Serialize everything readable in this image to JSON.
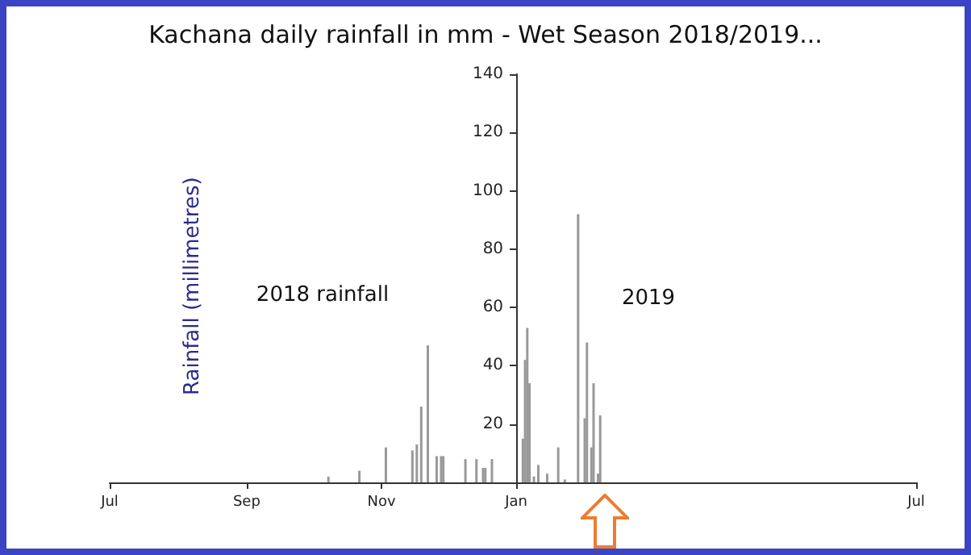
{
  "chart_data": {
    "type": "bar",
    "title": "Kachana daily rainfall in mm - Wet Season 2018/2019...",
    "ylabel": "Rainfall (millimetres)",
    "annotations": [
      "2018 rainfall",
      "2019"
    ],
    "x": [
      "2018-10-08",
      "2018-10-22",
      "2018-11-03",
      "2018-11-15",
      "2018-11-17",
      "2018-11-19",
      "2018-11-22",
      "2018-11-26",
      "2018-11-28",
      "2018-11-29",
      "2018-12-09",
      "2018-12-14",
      "2018-12-17",
      "2018-12-18",
      "2018-12-21",
      "2019-01-04",
      "2019-01-05",
      "2019-01-06",
      "2019-01-07",
      "2019-01-09",
      "2019-01-11",
      "2019-01-15",
      "2019-01-20",
      "2019-01-23",
      "2019-01-29",
      "2019-02-01",
      "2019-02-02",
      "2019-02-04",
      "2019-02-05",
      "2019-02-07",
      "2019-02-08"
    ],
    "values": [
      2,
      4,
      12,
      11,
      13,
      26,
      47,
      9,
      9,
      9,
      8,
      8,
      5,
      5,
      8,
      15,
      42,
      53,
      34,
      2,
      6,
      3,
      12,
      1,
      92,
      22,
      48,
      12,
      34,
      3,
      23
    ],
    "color": "#999999",
    "xlim": [
      "2018-07-01",
      "2019-07-01"
    ],
    "xticks": [
      {
        "value": "2018-07-01",
        "label": "Jul"
      },
      {
        "value": "2018-09-01",
        "label": "Sep"
      },
      {
        "value": "2018-11-01",
        "label": "Nov"
      },
      {
        "value": "2019-01-01",
        "label": "Jan"
      },
      {
        "value": "2019-07-01",
        "label": "Jul"
      }
    ],
    "ylim": [
      0,
      140
    ],
    "yticks": [
      {
        "value": 0,
        "label": null
      },
      20,
      40,
      60,
      80,
      100,
      120,
      140
    ],
    "grid": false
  }
}
